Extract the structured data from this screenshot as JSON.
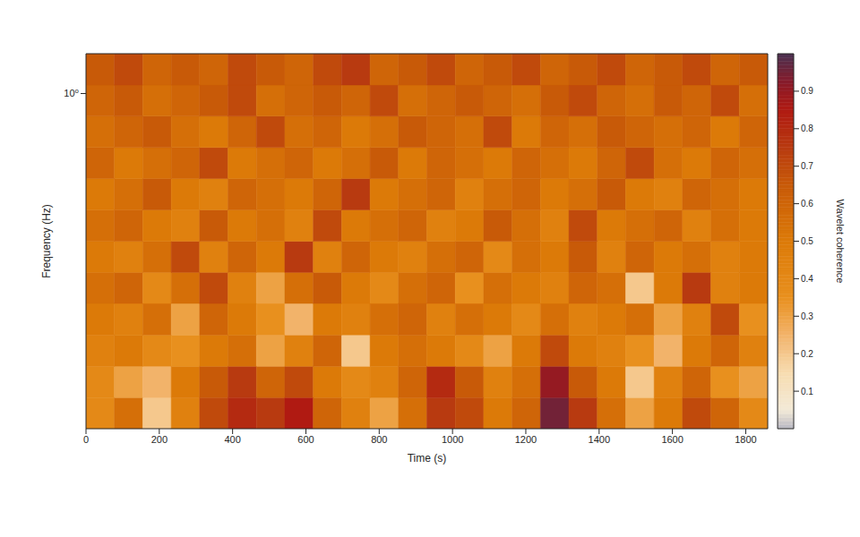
{
  "chart_data": {
    "type": "heatmap",
    "xlabel": "Time (s)",
    "ylabel": "Frequency (Hz)",
    "log": "y",
    "xlim": [
      0,
      1860
    ],
    "xticks": [
      0,
      200,
      400,
      600,
      800,
      1000,
      1200,
      1400,
      1600,
      1800
    ],
    "ylim": [
      0.11,
      1.3
    ],
    "yticks": [
      {
        "value": 1,
        "label": "10⁰"
      }
    ],
    "x_edges": [
      0,
      77.5,
      155,
      232.5,
      310,
      387.5,
      465,
      542.5,
      620,
      697.5,
      775,
      852.5,
      930,
      1007.5,
      1085,
      1162.5,
      1240,
      1317.5,
      1395,
      1472.5,
      1550,
      1627.5,
      1705,
      1782.5,
      1860
    ],
    "y_edges": [
      0.11,
      0.135,
      0.166,
      0.204,
      0.251,
      0.308,
      0.378,
      0.465,
      0.571,
      0.701,
      0.862,
      1.058,
      1.3
    ],
    "cells": [
      [
        0.4,
        0.55,
        0.2,
        0.45,
        0.7,
        0.8,
        0.75,
        0.85,
        0.6,
        0.45,
        0.3,
        0.55,
        0.75,
        0.7,
        0.5,
        0.6,
        0.95,
        0.75,
        0.55,
        0.3,
        0.5,
        0.7,
        0.6,
        0.4
      ],
      [
        0.4,
        0.3,
        0.25,
        0.5,
        0.65,
        0.75,
        0.6,
        0.7,
        0.5,
        0.4,
        0.45,
        0.6,
        0.8,
        0.65,
        0.45,
        0.55,
        0.9,
        0.65,
        0.5,
        0.2,
        0.45,
        0.6,
        0.35,
        0.3
      ],
      [
        0.45,
        0.5,
        0.4,
        0.35,
        0.5,
        0.55,
        0.3,
        0.45,
        0.6,
        0.2,
        0.5,
        0.55,
        0.5,
        0.4,
        0.3,
        0.5,
        0.7,
        0.5,
        0.45,
        0.35,
        0.25,
        0.5,
        0.6,
        0.45
      ],
      [
        0.5,
        0.45,
        0.55,
        0.3,
        0.6,
        0.5,
        0.35,
        0.25,
        0.5,
        0.45,
        0.55,
        0.6,
        0.45,
        0.55,
        0.5,
        0.4,
        0.55,
        0.45,
        0.5,
        0.55,
        0.3,
        0.45,
        0.7,
        0.35
      ],
      [
        0.55,
        0.6,
        0.4,
        0.55,
        0.7,
        0.45,
        0.3,
        0.55,
        0.65,
        0.5,
        0.4,
        0.55,
        0.6,
        0.35,
        0.55,
        0.5,
        0.45,
        0.6,
        0.55,
        0.2,
        0.5,
        0.75,
        0.45,
        0.5
      ],
      [
        0.5,
        0.45,
        0.55,
        0.7,
        0.45,
        0.6,
        0.5,
        0.75,
        0.45,
        0.6,
        0.5,
        0.45,
        0.55,
        0.6,
        0.4,
        0.55,
        0.5,
        0.65,
        0.45,
        0.6,
        0.5,
        0.55,
        0.45,
        0.5
      ],
      [
        0.55,
        0.6,
        0.5,
        0.45,
        0.65,
        0.5,
        0.55,
        0.45,
        0.7,
        0.5,
        0.55,
        0.6,
        0.45,
        0.5,
        0.65,
        0.55,
        0.45,
        0.7,
        0.5,
        0.55,
        0.6,
        0.45,
        0.55,
        0.5
      ],
      [
        0.5,
        0.55,
        0.65,
        0.5,
        0.45,
        0.6,
        0.55,
        0.5,
        0.6,
        0.75,
        0.5,
        0.55,
        0.6,
        0.45,
        0.55,
        0.6,
        0.5,
        0.55,
        0.65,
        0.5,
        0.45,
        0.6,
        0.55,
        0.5
      ],
      [
        0.6,
        0.5,
        0.55,
        0.6,
        0.7,
        0.5,
        0.55,
        0.6,
        0.5,
        0.55,
        0.65,
        0.5,
        0.6,
        0.55,
        0.5,
        0.6,
        0.55,
        0.5,
        0.6,
        0.7,
        0.55,
        0.5,
        0.6,
        0.55
      ],
      [
        0.55,
        0.6,
        0.65,
        0.55,
        0.5,
        0.6,
        0.7,
        0.55,
        0.6,
        0.5,
        0.55,
        0.65,
        0.6,
        0.55,
        0.7,
        0.5,
        0.6,
        0.55,
        0.65,
        0.6,
        0.55,
        0.6,
        0.5,
        0.6
      ],
      [
        0.6,
        0.65,
        0.55,
        0.6,
        0.65,
        0.7,
        0.55,
        0.6,
        0.65,
        0.6,
        0.7,
        0.55,
        0.6,
        0.65,
        0.6,
        0.55,
        0.65,
        0.7,
        0.6,
        0.55,
        0.65,
        0.6,
        0.7,
        0.55
      ],
      [
        0.65,
        0.7,
        0.6,
        0.65,
        0.6,
        0.7,
        0.65,
        0.6,
        0.7,
        0.75,
        0.6,
        0.65,
        0.7,
        0.6,
        0.65,
        0.7,
        0.6,
        0.65,
        0.7,
        0.6,
        0.65,
        0.7,
        0.6,
        0.65
      ]
    ],
    "colorbar": {
      "label": "Wavelet coherence",
      "range": [
        0,
        1
      ],
      "ticks": [
        0.1,
        0.2,
        0.3,
        0.4,
        0.5,
        0.6,
        0.7,
        0.8,
        0.9
      ]
    }
  }
}
